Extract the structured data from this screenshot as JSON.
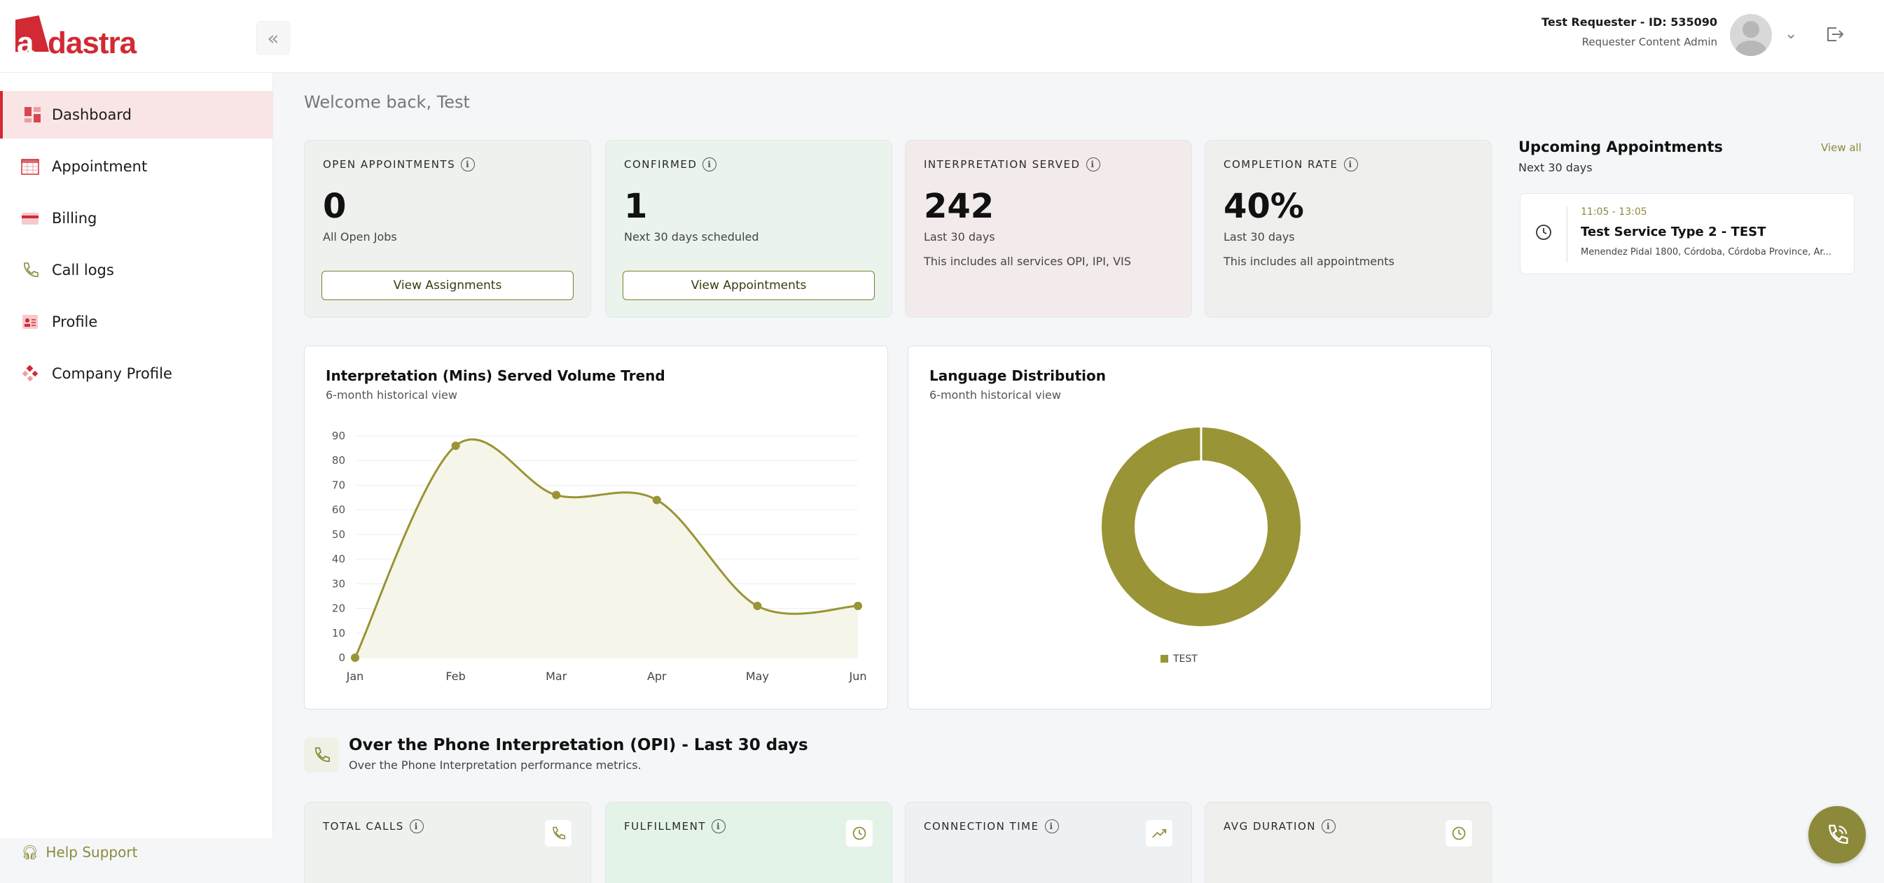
{
  "header": {
    "logo_text": "adastra",
    "logo_first": "a",
    "logo_rest": "dastra",
    "user_name": "Test Requester - ID: 535090",
    "user_role": "Requester Content Admin"
  },
  "sidebar": {
    "items": [
      {
        "label": "Dashboard",
        "icon": "dashboard-icon",
        "active": true
      },
      {
        "label": "Appointment",
        "icon": "calendar-icon"
      },
      {
        "label": "Billing",
        "icon": "billing-icon"
      },
      {
        "label": "Call logs",
        "icon": "phone-icon"
      },
      {
        "label": "Profile",
        "icon": "profile-icon"
      },
      {
        "label": "Company Profile",
        "icon": "company-icon"
      }
    ],
    "help_label": "Help Support"
  },
  "main": {
    "welcome": "Welcome back, Test",
    "stats": [
      {
        "label": "OPEN APPOINTMENTS",
        "value": "0",
        "sub": "All Open Jobs",
        "button": "View Assignments"
      },
      {
        "label": "CONFIRMED",
        "value": "1",
        "sub": "Next 30 days scheduled",
        "button": "View Appointments"
      },
      {
        "label": "INTERPRETATION SERVED",
        "value": "242",
        "sub": "Last 30 days",
        "note": "This includes all services OPI, IPI, VIS"
      },
      {
        "label": "COMPLETION RATE",
        "value": "40%",
        "sub": "Last 30 days",
        "note": "This includes all appointments"
      }
    ],
    "trend_panel": {
      "title": "Interpretation (Mins) Served Volume Trend",
      "subtitle": "6-month historical view"
    },
    "language_panel": {
      "title": "Language Distribution",
      "subtitle": "6-month historical view"
    },
    "opi": {
      "title": "Over the Phone Interpretation (OPI) - Last 30 days",
      "subtitle": "Over the Phone Interpretation performance metrics."
    },
    "metrics": [
      {
        "label": "TOTAL CALLS",
        "icon": "phone-icon"
      },
      {
        "label": "FULFILLMENT",
        "icon": "clock-icon"
      },
      {
        "label": "CONNECTION TIME",
        "icon": "trend-up-icon"
      },
      {
        "label": "AVG DURATION",
        "icon": "clock-icon"
      }
    ]
  },
  "upcoming": {
    "title": "Upcoming Appointments",
    "subtitle": "Next 30 days",
    "view_all": "View all",
    "items": [
      {
        "time": "11:05 - 13:05",
        "name": "Test Service Type 2 - TEST",
        "address": "Menendez Pidal 1800, Córdoba, Córdoba Province, Ar..."
      }
    ]
  },
  "colors": {
    "brand_red": "#d12a34",
    "olive": "#8c8a3a",
    "series": "#999435"
  },
  "chart_data": [
    {
      "type": "area",
      "categories": [
        "Jan",
        "Feb",
        "Mar",
        "Apr",
        "May",
        "Jun"
      ],
      "values": [
        0,
        86,
        66,
        64,
        21,
        21
      ],
      "ylim": [
        0,
        90
      ],
      "yticks": [
        0,
        10,
        20,
        30,
        40,
        50,
        60,
        70,
        80,
        90
      ],
      "grid": true
    },
    {
      "type": "pie",
      "categories": [
        "TEST"
      ],
      "values": [
        100
      ],
      "donut": true,
      "legend": "bottom"
    }
  ]
}
